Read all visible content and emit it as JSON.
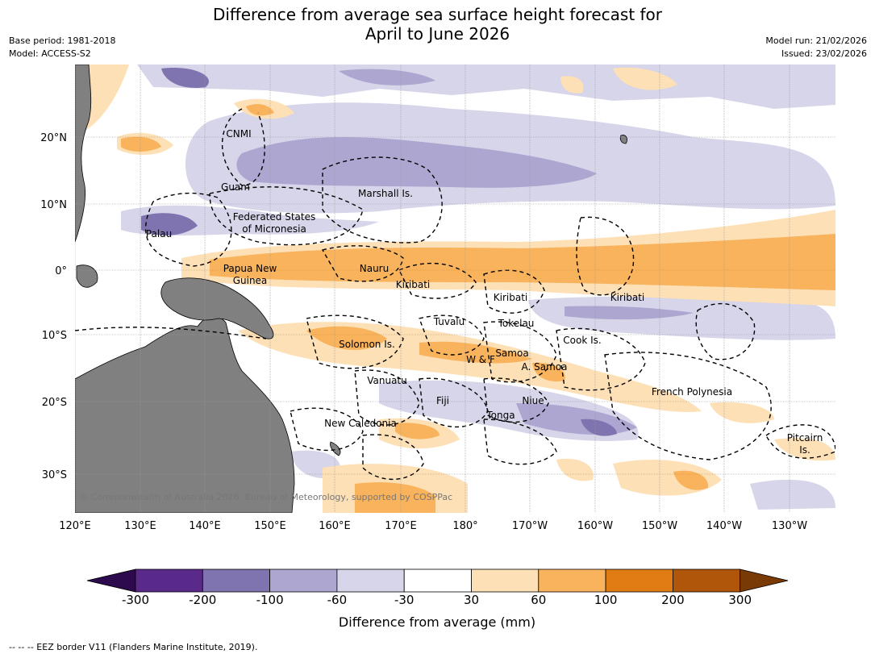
{
  "title_line1": "Difference from average sea surface height forecast for",
  "title_line2": "April to June 2026",
  "base_period": "Base period: 1981-2018",
  "model": "Model: ACCESS-S2",
  "model_run": "Model run: 21/02/2026",
  "issued": "Issued: 23/02/2026",
  "copyright": "© Commonwealth of Australia 2026, Bureau of Meteorology, supported by COSPPac",
  "footer": "--  --  -- EEZ border V11 (Flanders Marine Institute, 2019).",
  "lat_labels": [
    "20°N",
    "10°N",
    "0°",
    "10°S",
    "20°S",
    "30°S"
  ],
  "lon_labels": [
    "120°E",
    "130°E",
    "140°E",
    "150°E",
    "160°E",
    "170°E",
    "180°",
    "170°W",
    "160°W",
    "150°W",
    "140°W",
    "130°W"
  ],
  "place_labels": [
    "CNMI",
    "Guam",
    "Marshall Is.",
    "Federated States",
    "of Micronesia",
    "Palau",
    "Papua New",
    "Guinea",
    "Nauru",
    "Kiribati",
    "Kiribati",
    "Kiribati",
    "Tuvalu",
    "Tokelau",
    "Solomon Is.",
    "Samoa",
    "W & F",
    "A. Samoa",
    "Cook Is.",
    "Vanuatu",
    "Fiji",
    "Niue",
    "French Polynesia",
    "New Caledonia",
    "Tonga",
    "Pitcairn",
    "Is."
  ],
  "colorbar": {
    "title": "Difference from average (mm)",
    "ticks": [
      "-300",
      "-200",
      "-100",
      "-60",
      "-30",
      "30",
      "60",
      "100",
      "200",
      "300"
    ],
    "colors": [
      "#2d0a4e",
      "#5a2a8a",
      "#8074b0",
      "#aca6d0",
      "#d6d5e9",
      "#ffffff",
      "#fde0b6",
      "#f8b35c",
      "#df7d14",
      "#b0560a",
      "#7a3a05"
    ]
  },
  "map_colors": {
    "land": "#808080",
    "ocean": "#ffffff"
  }
}
